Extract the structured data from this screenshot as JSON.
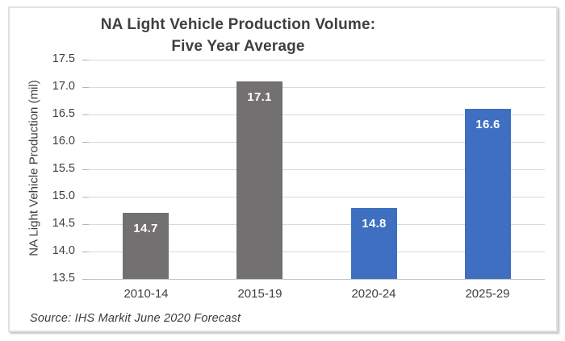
{
  "chart_data": {
    "type": "bar",
    "title": "NA Light Vehicle Production Volume: Five Year Average",
    "title_line1": "NA Light Vehicle Production Volume:",
    "title_line2": "Five Year Average",
    "ylabel": "NA Light Vehicle Production (mil)",
    "xlabel": "",
    "categories": [
      "2010-14",
      "2015-19",
      "2020-24",
      "2025-29"
    ],
    "values": [
      14.7,
      17.1,
      14.8,
      16.6
    ],
    "value_labels": [
      "14.7",
      "17.1",
      "14.8",
      "16.6"
    ],
    "bar_colors": [
      "#727070",
      "#727070",
      "#3e6fc1",
      "#3e6fc1"
    ],
    "ylim": [
      13.5,
      17.5
    ],
    "ytick_step": 0.5,
    "yticks": [
      "17.5",
      "17.0",
      "16.5",
      "16.0",
      "15.5",
      "15.0",
      "14.5",
      "14.0",
      "13.5"
    ],
    "grid": true,
    "legend": "none",
    "source": "Source: IHS Markit June 2020 Forecast"
  },
  "colors": {
    "gray_bar": "#727070",
    "blue_bar": "#3e6fc1",
    "gridline": "#d9d9d9",
    "axis_line": "#c3c3c3",
    "text": "#3f3f3f",
    "bar_label_text": "#ffffff",
    "frame_border": "#e0e0e0",
    "background": "#ffffff"
  }
}
